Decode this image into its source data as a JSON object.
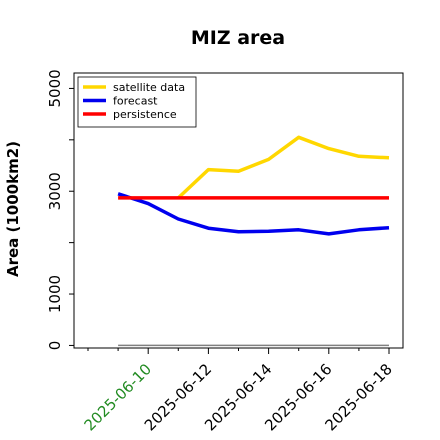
{
  "chart_data": {
    "type": "line",
    "title": "MIZ area",
    "ylabel": "Area (1000km2)",
    "xlabel": "",
    "ylim": [
      -50,
      5300
    ],
    "xlim": [
      "2025-06-08",
      "2025-06-18"
    ],
    "y_ticks": [
      0,
      1000,
      3000,
      5000
    ],
    "y_minor_ticks": [
      2000,
      4000
    ],
    "x_ticks": [
      "2025-06-10",
      "2025-06-12",
      "2025-06-14",
      "2025-06-16",
      "2025-06-18"
    ],
    "x_tick_colors": [
      "#228B22",
      "#000000",
      "#000000",
      "#000000",
      "#000000"
    ],
    "x": [
      "2025-06-09",
      "2025-06-10",
      "2025-06-11",
      "2025-06-12",
      "2025-06-13",
      "2025-06-14",
      "2025-06-15",
      "2025-06-16",
      "2025-06-17",
      "2025-06-18"
    ],
    "series": [
      {
        "name": "satellite data",
        "color": "#FFD700",
        "x": [
          "2025-06-11",
          "2025-06-12",
          "2025-06-13",
          "2025-06-14",
          "2025-06-15",
          "2025-06-16",
          "2025-06-17",
          "2025-06-18"
        ],
        "values": [
          2870,
          3420,
          3390,
          3620,
          4050,
          3830,
          3680,
          3650
        ]
      },
      {
        "name": "forecast",
        "color": "#0000EE",
        "x": [
          "2025-06-09",
          "2025-06-10",
          "2025-06-11",
          "2025-06-12",
          "2025-06-13",
          "2025-06-14",
          "2025-06-15",
          "2025-06-16",
          "2025-06-17",
          "2025-06-18"
        ],
        "values": [
          2950,
          2760,
          2460,
          2280,
          2210,
          2220,
          2250,
          2170,
          2250,
          2290
        ]
      },
      {
        "name": "persistence",
        "color": "#FF0000",
        "x": [
          "2025-06-09",
          "2025-06-18"
        ],
        "values": [
          2870,
          2870
        ]
      },
      {
        "name": "",
        "color": "#808080",
        "x": [
          "2025-06-09",
          "2025-06-18"
        ],
        "values": [
          0,
          0
        ]
      }
    ],
    "legend_position": "top-left",
    "grid": false
  }
}
